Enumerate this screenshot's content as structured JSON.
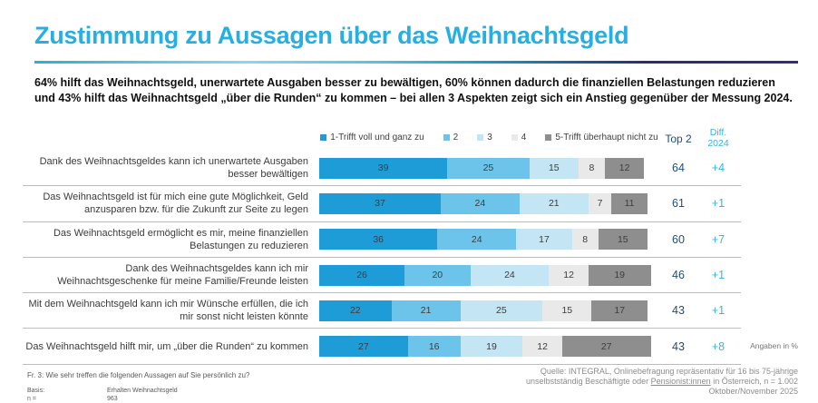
{
  "title": "Zustimmung zu Aussagen über das Weihnachtsgeld",
  "subtitle": "64% hilft das Weihnachtsgeld, unerwartete Ausgaben besser zu bewältigen, 60% können dadurch die finanziellen Belastungen reduzieren und 43% hilft das Weihnachtsgeld „über die Runden“ zu kommen – bei allen 3 Aspekten zeigt sich ein Anstieg gegenüber der Messung 2024.",
  "colors": {
    "title_accent": "#27AEE3",
    "top2_text": "#1F4E79",
    "diff_text": "#33B5E5",
    "separator": "#bdbdbd"
  },
  "chart_data": {
    "type": "bar",
    "variant": "stacked-horizontal-percent",
    "legend_position": "top",
    "x_range": [
      0,
      100
    ],
    "legend": [
      "1-Trifft voll und ganz zu",
      "2",
      "3",
      "4",
      "5-Trifft überhaupt nicht zu"
    ],
    "legend_colors": [
      "#1E9CD8",
      "#6CC4EA",
      "#C3E5F4",
      "#E9E9E9",
      "#8E8E8E"
    ],
    "top2_label": "Top 2",
    "diff_label_line1": "Diff.",
    "diff_label_line2": "2024",
    "unit_note": "Angaben in %",
    "rows": [
      {
        "label": "Dank des Weihnachtsgeldes kann ich unerwartete Ausgaben besser bewältigen",
        "values": [
          39,
          25,
          15,
          8,
          12
        ],
        "top2": 64,
        "diff": "+4"
      },
      {
        "label": "Das Weihnachtsgeld ist für mich eine gute Möglichkeit, Geld anzusparen bzw. für die Zukunft zur Seite zu legen",
        "values": [
          37,
          24,
          21,
          7,
          11
        ],
        "top2": 61,
        "diff": "+1"
      },
      {
        "label": "Das Weihnachtsgeld ermöglicht es mir, meine finanziellen Belastungen zu reduzieren",
        "values": [
          36,
          24,
          17,
          8,
          15
        ],
        "top2": 60,
        "diff": "+7"
      },
      {
        "label": "Dank des Weihnachtsgeldes kann ich mir Weihnachtsgeschenke für meine Familie/Freunde leisten",
        "values": [
          26,
          20,
          24,
          12,
          19
        ],
        "top2": 46,
        "diff": "+1"
      },
      {
        "label": "Mit dem Weihnachtsgeld kann ich mir Wünsche erfüllen, die ich mir sonst nicht leisten könnte",
        "values": [
          22,
          21,
          25,
          15,
          17
        ],
        "top2": 43,
        "diff": "+1"
      },
      {
        "label": "Das Weihnachtsgeld hilft mir, um „über die Runden“ zu kommen",
        "values": [
          27,
          16,
          19,
          12,
          27
        ],
        "top2": 43,
        "diff": "+8"
      }
    ]
  },
  "footer": {
    "question": "Fr. 3: Wie sehr treffen die folgenden Aussagen auf Sie persönlich zu?",
    "basis_label": "Basis:",
    "basis_value": "Erhalten Weihnachtsgeld",
    "n_label": "n =",
    "n_value": "963",
    "source_line1": "Quelle: INTEGRAL, Onlinebefragung repräsentativ für 16 bis 75-jährige",
    "source_line2_prefix": "unselbstständig Beschäftigte oder ",
    "source_line2_link": "Pensionist:innen",
    "source_line2_suffix": " in Österreich, n = 1.002",
    "source_line3": "Oktober/November 2025"
  }
}
